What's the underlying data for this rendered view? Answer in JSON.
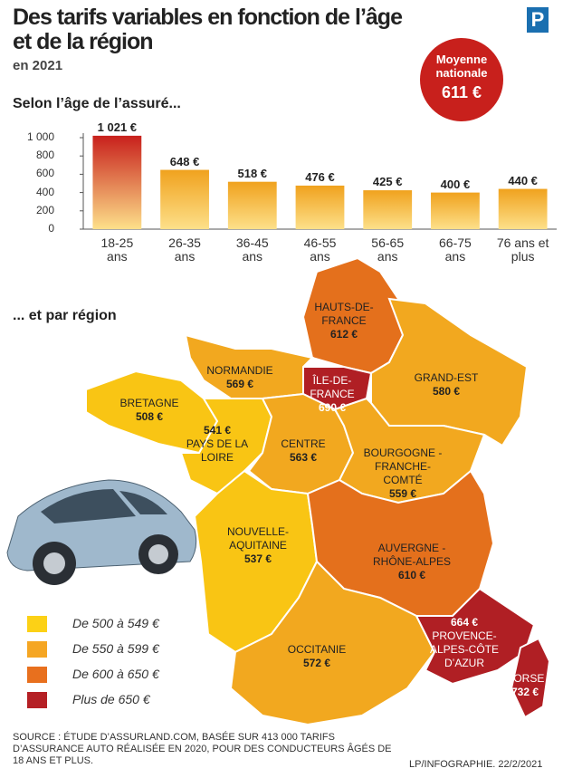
{
  "header": {
    "title": "Des tarifs variables en fonction de l’âge et de la région",
    "subtitle": "en 2021",
    "logo": "P"
  },
  "badge": {
    "label": "Moyenne nationale",
    "value": "611 €"
  },
  "chart_data": {
    "type": "bar",
    "title": "Selon l’âge de l’assuré...",
    "categories": [
      "18-25 ans",
      "26-35 ans",
      "36-45 ans",
      "46-55 ans",
      "56-65 ans",
      "66-75 ans",
      "76 ans et plus"
    ],
    "values": [
      1021,
      648,
      518,
      476,
      425,
      400,
      440
    ],
    "value_labels": [
      "1 021 €",
      "648 €",
      "518 €",
      "476 €",
      "425 €",
      "400 €",
      "440 €"
    ],
    "colors": [
      "#c8201c",
      "#f0a21e",
      "#f0a21e",
      "#f0a21e",
      "#f0a21e",
      "#f0a21e",
      "#f0a21e"
    ],
    "ylim": [
      0,
      1000
    ],
    "yticks": [
      0,
      200,
      400,
      600,
      800,
      {
        "value": 1000,
        "label": "1 000"
      }
    ]
  },
  "map": {
    "title": "... et par région",
    "regions": [
      {
        "name": "HAUTS-DE-FRANCE",
        "value": "612 €",
        "color": "#e4701c"
      },
      {
        "name": "ÎLE-DE-FRANCE",
        "value": "690 €",
        "color": "#b01f24"
      },
      {
        "name": "GRAND-EST",
        "value": "580 €",
        "color": "#f2a81f"
      },
      {
        "name": "NORMANDIE",
        "value": "569 €",
        "color": "#f2a81f"
      },
      {
        "name": "BRETAGNE",
        "value": "508 €",
        "color": "#f9c514"
      },
      {
        "name": "PAYS DE LA LOIRE",
        "value": "541 €",
        "color": "#f9c514"
      },
      {
        "name": "CENTRE",
        "value": "563 €",
        "color": "#f2a81f"
      },
      {
        "name": "BOURGOGNE - FRANCHE-COMTÉ",
        "value": "559 €",
        "color": "#f2a81f"
      },
      {
        "name": "NOUVELLE-AQUITAINE",
        "value": "537 €",
        "color": "#f9c514"
      },
      {
        "name": "AUVERGNE - RHÔNE-ALPES",
        "value": "610 €",
        "color": "#e4701c"
      },
      {
        "name": "OCCITANIE",
        "value": "572 €",
        "color": "#f2a81f"
      },
      {
        "name": "PROVENCE-ALPES-CÔTE D’AZUR",
        "value": "664 €",
        "color": "#b01f24"
      },
      {
        "name": "CORSE",
        "value": "732 €",
        "color": "#b01f24"
      }
    ],
    "legend": [
      {
        "label": "De 500 à 549 €",
        "color": "#fcd116"
      },
      {
        "label": "De 550 à 599 €",
        "color": "#f5a623"
      },
      {
        "label": "De 600 à 650 €",
        "color": "#e8701e"
      },
      {
        "label": "Plus de 650 €",
        "color": "#b52025"
      }
    ]
  },
  "footer": {
    "source": "SOURCE : ÉTUDE D’ASSURLAND.COM, BASÉE SUR 413 000 TARIFS D’ASSURANCE AUTO RÉALISÉE EN 2020, POUR DES CONDUCTEURS ÂGÉS DE 18 ANS ET PLUS.",
    "credit": "LP/INFOGRAPHIE. 22/2/2021"
  }
}
